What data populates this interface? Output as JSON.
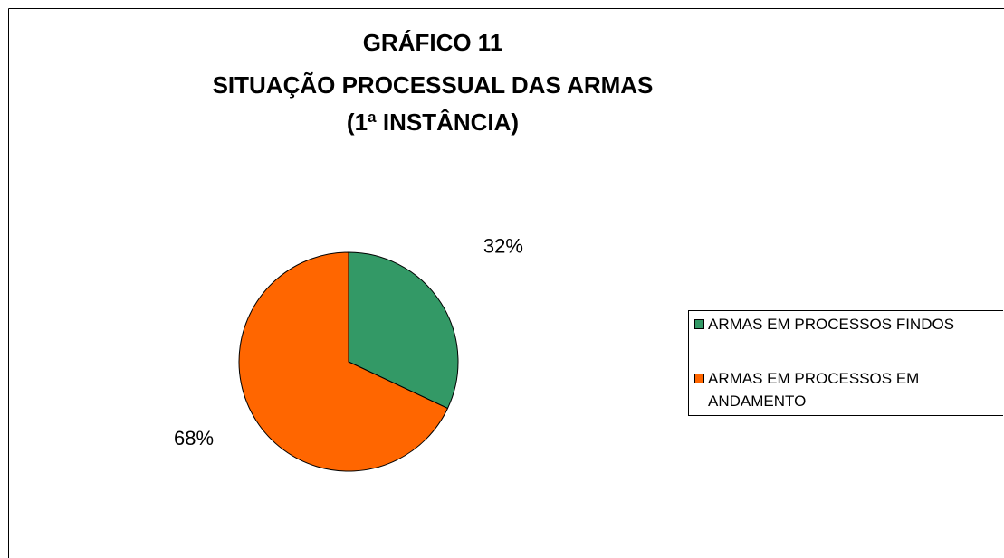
{
  "chart_data": {
    "type": "pie",
    "title": [
      "GRÁFICO 11",
      "SITUAÇÃO PROCESSUAL DAS ARMAS",
      "(1ª INSTÂNCIA)"
    ],
    "categories": [
      "ARMAS EM PROCESSOS FINDOS",
      "ARMAS EM PROCESSOS EM ANDAMENTO"
    ],
    "values": [
      32,
      68
    ],
    "value_labels": [
      "32%",
      "68%"
    ],
    "colors": [
      "#339966",
      "#ff6600"
    ]
  }
}
